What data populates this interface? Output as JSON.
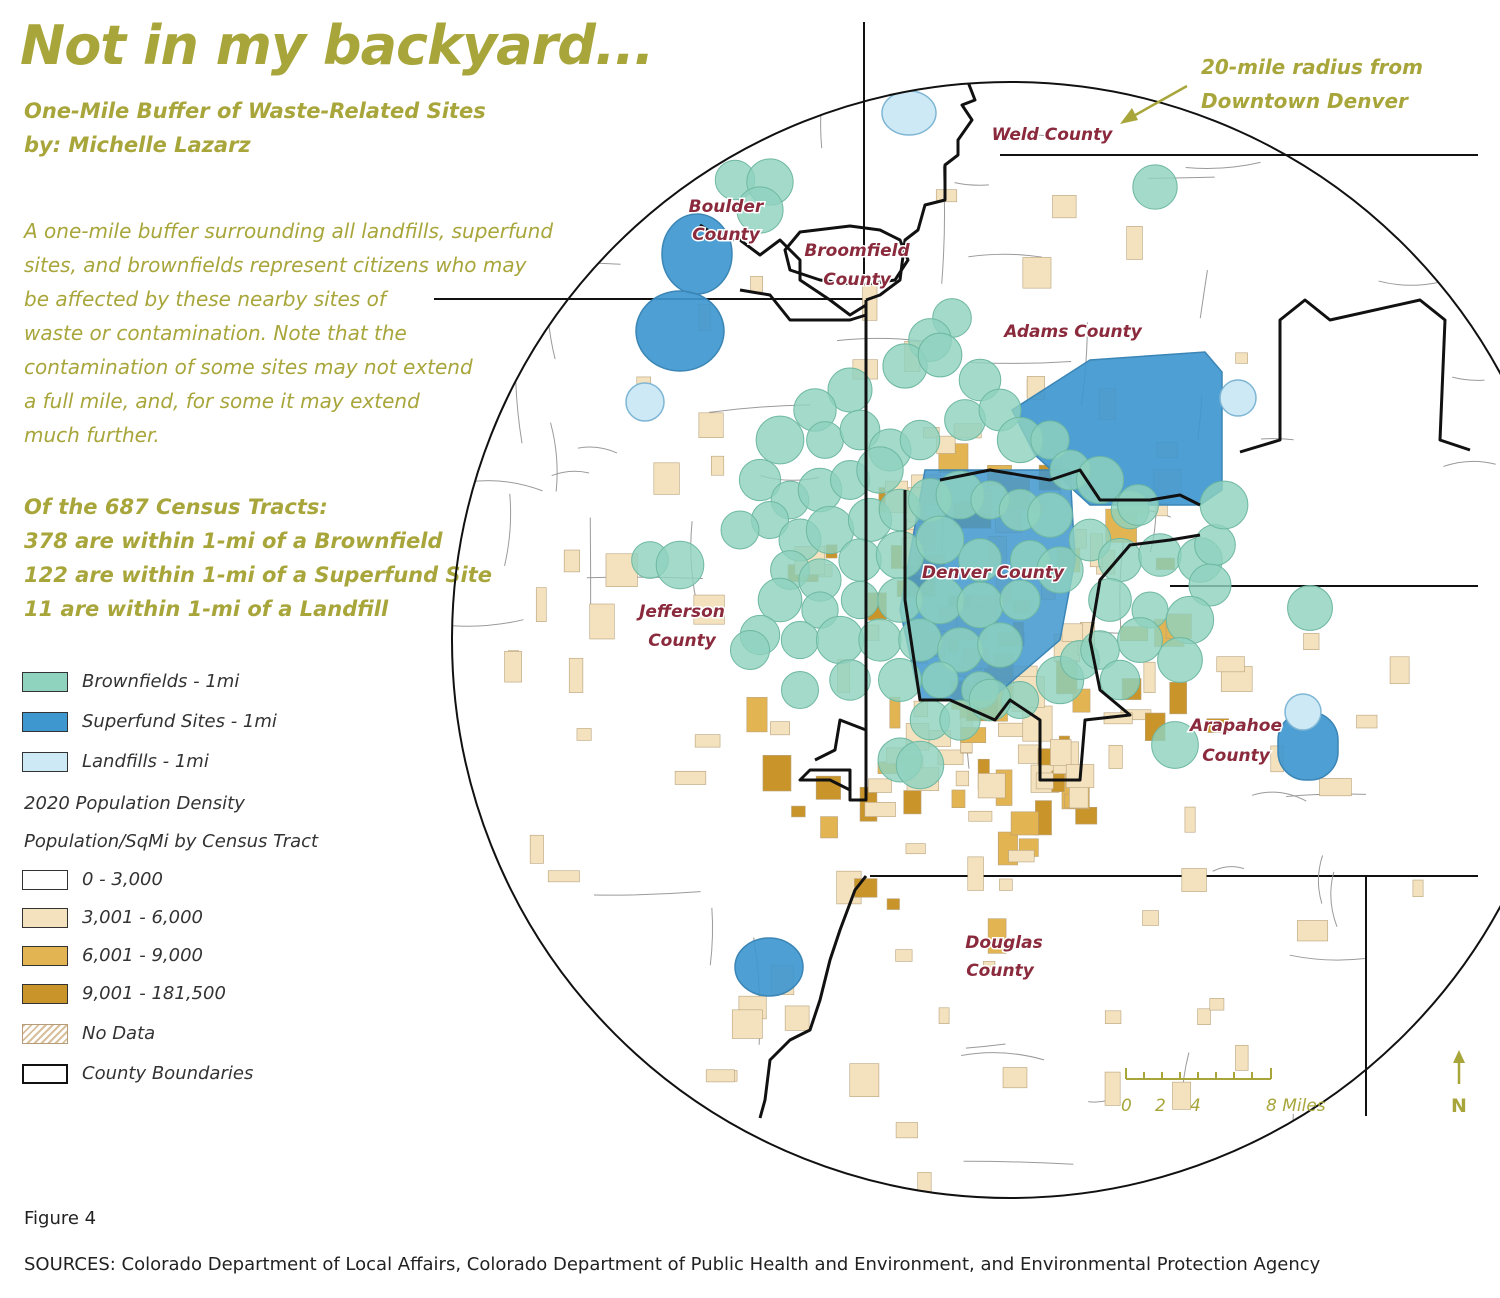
{
  "header": {
    "title": "Not in my backyard...",
    "subtitle_line1": "One-Mile Buffer of Waste-Related Sites",
    "subtitle_line2": "by: Michelle Lazarz"
  },
  "description": {
    "lines": [
      "A one-mile buffer surrounding all landfills, superfund",
      "sites, and brownfields represent citizens who may",
      "be affected by these nearby sites of",
      "waste or contamination.  Note that the",
      "contamination of some sites may not extend",
      "a full mile, and, for some it may extend",
      "much further."
    ]
  },
  "stats": {
    "heading": "Of the 687 Census Tracts:",
    "lines": [
      "378 are within 1-mi of a Brownfield",
      "122 are within 1-mi of a Superfund Site",
      "11 are within 1-mi of a Landfill"
    ]
  },
  "legend": {
    "brownfields": "Brownfields - 1mi",
    "superfund": "Superfund Sites - 1mi",
    "landfills": "Landfills - 1mi",
    "density_heading1": "2020 Population Density",
    "density_heading2": "Population/SqMi by Census Tract",
    "density_classes": [
      "0 - 3,000",
      "3,001 - 6,000",
      "6,001 - 9,000",
      "9,001 - 181,500"
    ],
    "no_data": "No Data",
    "county_boundaries": "County Boundaries"
  },
  "colors": {
    "title": "#a8a63b",
    "county_label": "#8a2a3c",
    "brownfield": "#8fd2be",
    "superfund": "#3f97cf",
    "landfill": "#cde9f6",
    "density_0": "#ffffff",
    "density_1": "#f4e2bf",
    "density_2": "#e3b452",
    "density_3": "#c9952a"
  },
  "map": {
    "counties": {
      "weld": "Weld County",
      "boulder1": "Boulder",
      "boulder2": "County",
      "broomfield1": "Broomfield",
      "broomfield2": "County",
      "adams": "Adams County",
      "denver": "Denver County",
      "jefferson1": "Jefferson",
      "jefferson2": "County",
      "arapahoe1": "Arapahoe",
      "arapahoe2": "County",
      "douglas1": "Douglas",
      "douglas2": "County"
    },
    "radius_label1": "20-mile radius from",
    "radius_label2": "Downtown Denver",
    "scale_ticks": [
      "0",
      "2",
      "4"
    ],
    "scale_end": "8 Miles",
    "north": "N"
  },
  "footer": {
    "figure": "Figure 4",
    "sources": "SOURCES: Colorado Department of Local Affairs, Colorado Department of Public Health and Environment, and Environmental Protection Agency"
  }
}
